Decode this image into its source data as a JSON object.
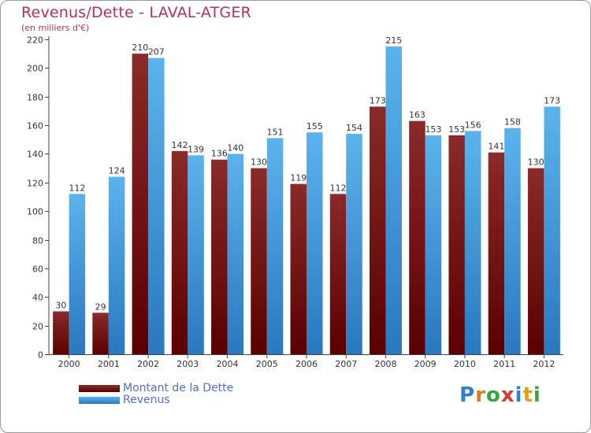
{
  "header": {
    "title": "Revenus/Dette - LAVAL-ATGER",
    "subtitle": "(en milliers d'€)"
  },
  "legend": {
    "items": [
      {
        "label": "Montant de la Dette",
        "color": "#7a1a1a"
      },
      {
        "label": "Revenus",
        "color": "#4aa0e0"
      }
    ]
  },
  "logo": {
    "text": "Proxiti"
  },
  "colors": {
    "title": "#b5305e",
    "debt_top": "#8a2a2a",
    "debt_bottom": "#5a0000",
    "revenue_top": "#5cb3ec",
    "revenue_bottom": "#2a78c0"
  },
  "chart_data": {
    "type": "bar",
    "title": "Revenus/Dette - LAVAL-ATGER",
    "subtitle": "(en milliers d'€)",
    "categories": [
      "2000",
      "2001",
      "2002",
      "2003",
      "2004",
      "2005",
      "2006",
      "2007",
      "2008",
      "2009",
      "2010",
      "2011",
      "2012"
    ],
    "series": [
      {
        "name": "Montant de la Dette",
        "values": [
          30,
          29,
          210,
          142,
          136,
          130,
          119,
          112,
          173,
          163,
          153,
          141,
          130
        ]
      },
      {
        "name": "Revenus",
        "values": [
          112,
          124,
          207,
          139,
          140,
          151,
          155,
          154,
          215,
          153,
          156,
          158,
          173
        ]
      }
    ],
    "ylim": [
      0,
      220
    ],
    "yticks": [
      0,
      20,
      40,
      60,
      80,
      100,
      120,
      140,
      160,
      180,
      200,
      220
    ],
    "grid": false,
    "legend_position": "bottom-left"
  }
}
